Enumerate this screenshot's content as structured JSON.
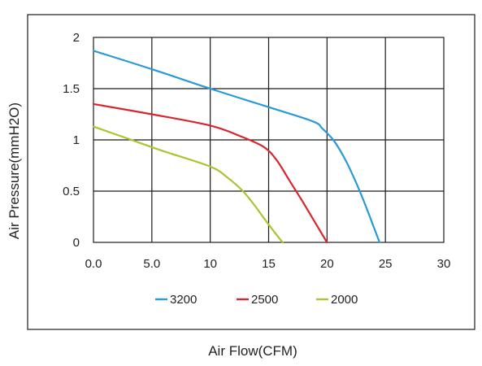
{
  "chart_data": {
    "type": "line",
    "title": "",
    "xlabel": "Air Flow(CFM)",
    "ylabel": "Air Pressure(mmH2O)",
    "xlim": [
      0,
      30
    ],
    "ylim": [
      0,
      2
    ],
    "x_ticks": [
      "0.0",
      "5.0",
      "10",
      "15",
      "20",
      "25",
      "30"
    ],
    "y_ticks": [
      "0",
      "0.5",
      "1",
      "1.5",
      "2"
    ],
    "grid": true,
    "legend_position": "bottom",
    "series": [
      {
        "name": "3200",
        "color": "#2a9ad6",
        "x": [
          0,
          5,
          10,
          15,
          18.8,
          19.6,
          20.6,
          21.6,
          22.5,
          23.3,
          24.0,
          24.5
        ],
        "y": [
          1.87,
          1.69,
          1.5,
          1.32,
          1.18,
          1.11,
          0.99,
          0.8,
          0.58,
          0.36,
          0.15,
          0.0
        ]
      },
      {
        "name": "2500",
        "color": "#d9262d",
        "x": [
          0,
          5,
          10,
          12.5,
          14.6,
          15.7,
          16.8,
          17.9,
          19.0,
          20.0
        ],
        "y": [
          1.35,
          1.25,
          1.14,
          1.04,
          0.93,
          0.8,
          0.6,
          0.4,
          0.19,
          0.0
        ]
      },
      {
        "name": "2000",
        "color": "#a8c630",
        "x": [
          0,
          3,
          6,
          10,
          11.5,
          12.8,
          13.8,
          14.7,
          15.5,
          16.2
        ],
        "y": [
          1.13,
          1.01,
          0.89,
          0.74,
          0.63,
          0.5,
          0.36,
          0.22,
          0.1,
          0.0
        ]
      }
    ]
  }
}
